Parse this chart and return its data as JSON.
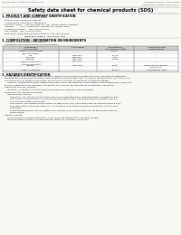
{
  "bg_color": "#f8f8f5",
  "header_left": "Product Name: Lithium Ion Battery Cell",
  "header_right_line1": "Substance number: SDM30-48S5",
  "header_right_line2": "Established / Revision: Dec.1.2010",
  "title": "Safety data sheet for chemical products (SDS)",
  "section1_title": "1. PRODUCT AND COMPANY IDENTIFICATION",
  "section1_lines": [
    "  - Product name: Lithium Ion Battery Cell",
    "  - Product code: Cylindrical-type cell",
    "      (IHR18650U, IHR18650U, IHR18650A)",
    "  - Company name:    Sanyo Electric Co., Ltd., Mobile Energy Company",
    "  - Address:         2-1-1  Kamionaka, Sumoto-City, Hyogo, Japan",
    "  - Telephone number:    +81-(799)-20-4111",
    "  - Fax number:  +81-1-799-26-4123",
    "  - Emergency telephone number (daytime): +81-799-20-3962",
    "                                 (Night and holiday): +81-799-26-4123"
  ],
  "section2_title": "2. COMPOSITION / INFORMATION ON INGREDIENTS",
  "section2_intro": "  - Substance or preparation: Preparation",
  "section2_sub": "  - Information about the chemical nature of product:",
  "col_positions": [
    3,
    65,
    107,
    148,
    197
  ],
  "table_header_row1": [
    "Component /",
    "CAS number",
    "Concentration /",
    "Classification and"
  ],
  "table_header_row2": [
    "Several name",
    "",
    "Concentration range",
    "hazard labeling"
  ],
  "table_rows": [
    [
      "Lithium nickel tantalate",
      "-",
      "30-60%",
      "-"
    ],
    [
      "(LiNi+Co+Mn)O2",
      "",
      "",
      ""
    ],
    [
      "Iron",
      "7439-89-6",
      "10-20%",
      "-"
    ],
    [
      "Aluminum",
      "7429-90-5",
      "2-5%",
      "-"
    ],
    [
      "Graphite",
      "7782-42-5",
      "10-25%",
      "-"
    ],
    [
      "(Flake or graphite+)",
      "7440-44-0",
      "",
      ""
    ],
    [
      "(Artificial graphite+)",
      "",
      "",
      ""
    ],
    [
      "Copper",
      "7440-50-8",
      "5-15%",
      "Sensitization of the skin"
    ],
    [
      "",
      "",
      "",
      "group No.2"
    ],
    [
      "Organic electrolyte",
      "-",
      "10-20%",
      "Inflammatory liquid"
    ]
  ],
  "section3_title": "3. HAZARDS IDENTIFICATION",
  "section3_para1": "    For the battery cell, chemical substances are stored in a hermetically sealed metal case, designed to withstand",
  "section3_para2": "    temperature changes and electrode-some conditions during normal use. As a result, during normal use, there is no",
  "section3_para3": "    physical danger of ignition or explosion and there is no danger of hazardous substance leakage.",
  "section3_para4": "        However, if exposed to a fire, added mechanical shock, decomposed, when electric current abnormally flows over,",
  "section3_para5": "    the gas inside cannot be operated. The battery cell case will be breached at the extreme, hazardous",
  "section3_para6": "    substances may be released.",
  "section3_para7": "        Moreover, if heated strongly by the surrounding fire, some gas may be emitted.",
  "bullet1": "  - Most important hazard and effects:",
  "bullet1_lines": [
    "        Human health effects:",
    "            Inhalation: The release of the electrolyte has an anesthetic action and stimulates in respiratory tract.",
    "            Skin contact: The release of the electrolyte stimulates a skin. The electrolyte skin contact causes a",
    "            sore and stimulation on the skin.",
    "            Eye contact: The release of the electrolyte stimulates eyes. The electrolyte eye contact causes a sore",
    "            and stimulation on the eye. Especially, a substance that causes a strong inflammation of the eye is",
    "            contained.",
    "            Environmental effects: Since a battery cell remains in the environment, do not throw out it into the",
    "            environment."
  ],
  "bullet2": "  - Specific hazards:",
  "bullet2_lines": [
    "        If the electrolyte contacts with water, it will generate detrimental hydrogen fluoride.",
    "        Since the liquid electrolyte is inflammatory liquid, do not bring close to fire."
  ]
}
